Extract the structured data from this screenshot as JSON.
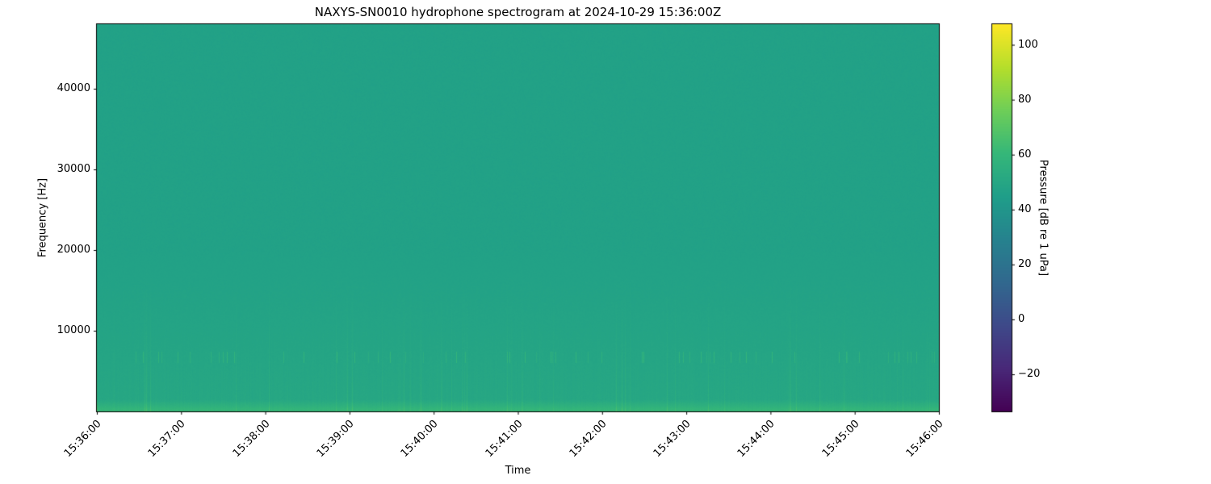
{
  "chart_data": {
    "type": "heatmap",
    "title": "NAXYS-SN0010 hydrophone spectrogram at 2024-10-29 15:36:00Z",
    "xlabel": "Time",
    "ylabel": "Frequency [Hz]",
    "colorbar_label": "Pressure [dB re 1 uPa]",
    "colormap": "viridis",
    "xlim": [
      "15:36:00",
      "15:46:00"
    ],
    "ylim": [
      0,
      48000
    ],
    "clim": [
      -33.5,
      107.5
    ],
    "x_ticks": [
      "15:36:00",
      "15:37:00",
      "15:38:00",
      "15:39:00",
      "15:40:00",
      "15:41:00",
      "15:42:00",
      "15:43:00",
      "15:44:00",
      "15:45:00",
      "15:46:00"
    ],
    "y_ticks": [
      10000,
      20000,
      30000,
      40000
    ],
    "colorbar_ticks": [
      -20,
      0,
      20,
      40,
      60,
      80,
      100
    ],
    "background_level_db": 47,
    "low_frequency_level_db": 58,
    "transient_band_hz": [
      6000,
      7500
    ],
    "grid": false
  }
}
